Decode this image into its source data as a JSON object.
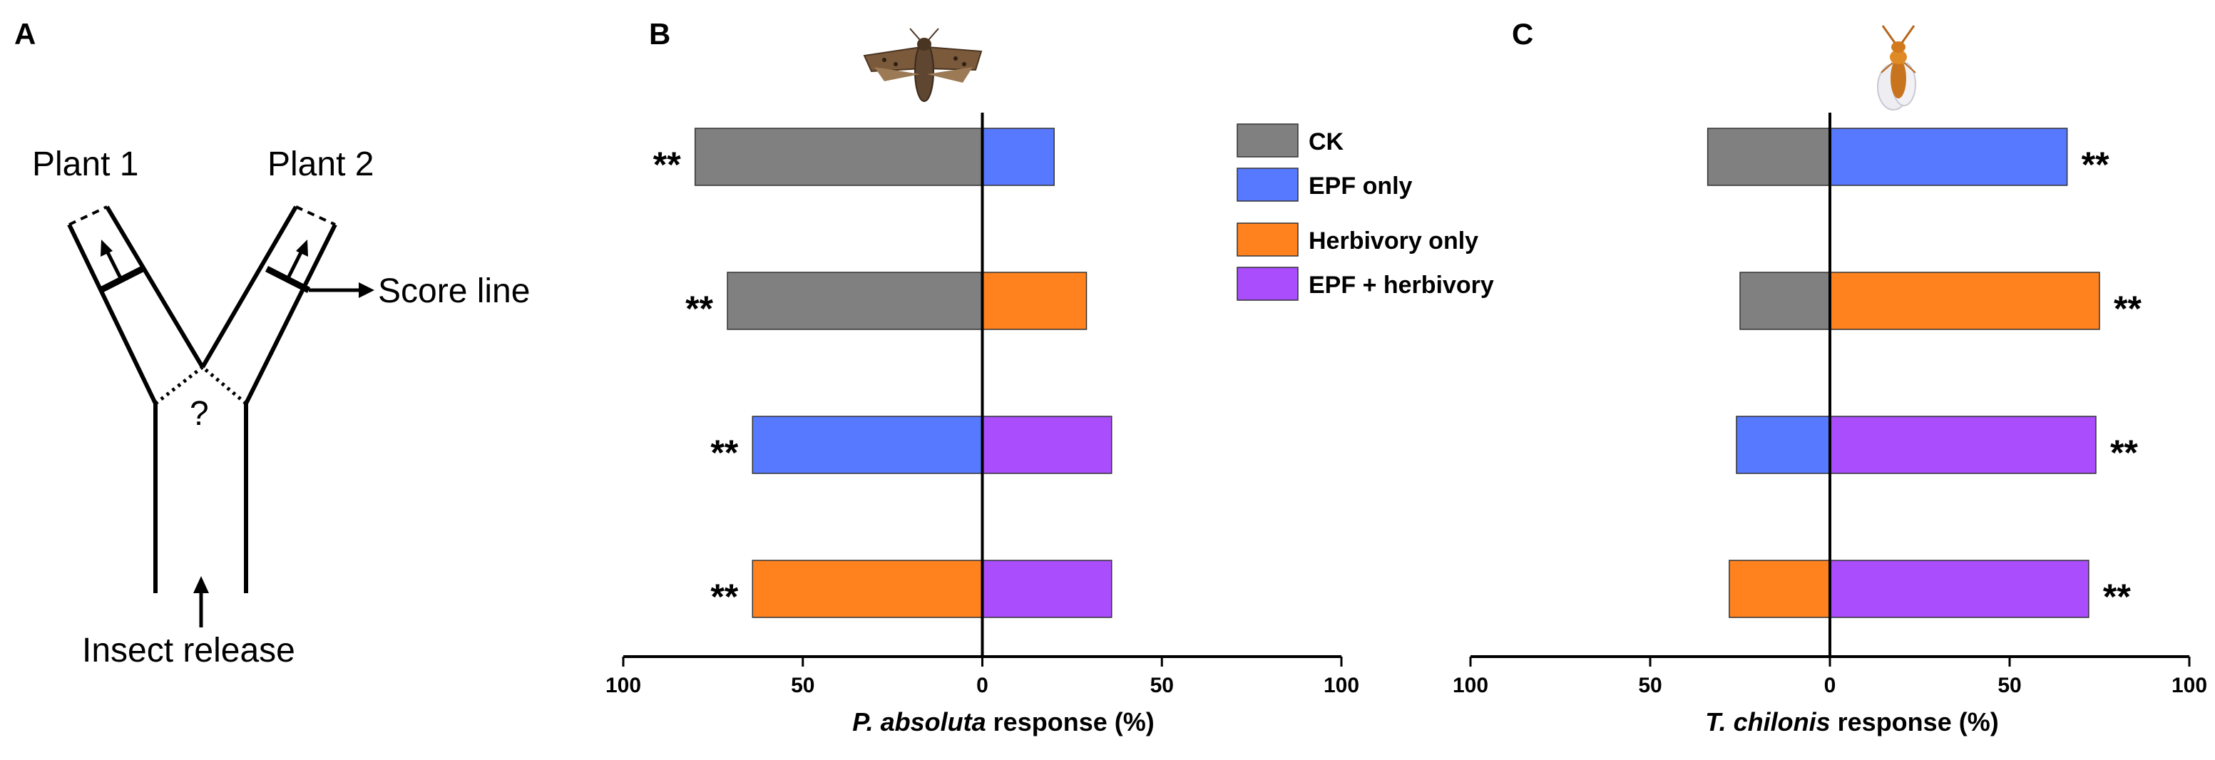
{
  "panels": {
    "a": {
      "letter": "A",
      "plant1": "Plant 1",
      "plant2": "Plant 2",
      "score_line": "Score line",
      "question": "?",
      "insect_release": "Insect release"
    },
    "b": {
      "letter": "B",
      "insect_icon": "moth-icon"
    },
    "c": {
      "letter": "C",
      "insect_icon": "wasp-icon"
    }
  },
  "legend": [
    {
      "key": "ck",
      "label": "CK",
      "color": "#808080"
    },
    {
      "key": "epf",
      "label": "EPF only",
      "color": "#5779ff"
    },
    {
      "key": "herb",
      "label": "Herbivory only",
      "color": "#ff821e"
    },
    {
      "key": "epfherb",
      "label": "EPF + herbivory",
      "color": "#a94dfd"
    }
  ],
  "chart_data": [
    {
      "type": "bar",
      "orientation": "horizontal-diverging",
      "panel": "B",
      "xlabel_italic": "P. absoluta",
      "xlabel_rest": " response (%)",
      "xlim": [
        -100,
        100
      ],
      "ticks": [
        {
          "value": -100,
          "label": "100"
        },
        {
          "value": -50,
          "label": "50"
        },
        {
          "value": 0,
          "label": "0"
        },
        {
          "value": 50,
          "label": "50"
        },
        {
          "value": 100,
          "label": "100"
        }
      ],
      "rows": [
        {
          "left": {
            "group": "ck",
            "value": 80
          },
          "right": {
            "group": "epf",
            "value": 20
          },
          "sig": "**",
          "sig_side": "left"
        },
        {
          "left": {
            "group": "ck",
            "value": 71
          },
          "right": {
            "group": "herb",
            "value": 29
          },
          "sig": "**",
          "sig_side": "left"
        },
        {
          "left": {
            "group": "epf",
            "value": 64
          },
          "right": {
            "group": "epfherb",
            "value": 36
          },
          "sig": "**",
          "sig_side": "left"
        },
        {
          "left": {
            "group": "herb",
            "value": 64
          },
          "right": {
            "group": "epfherb",
            "value": 36
          },
          "sig": "**",
          "sig_side": "left"
        }
      ]
    },
    {
      "type": "bar",
      "orientation": "horizontal-diverging",
      "panel": "C",
      "xlabel_italic": "T. chilonis",
      "xlabel_rest": " response (%)",
      "xlim": [
        -100,
        100
      ],
      "ticks": [
        {
          "value": -100,
          "label": "100"
        },
        {
          "value": -50,
          "label": "50"
        },
        {
          "value": 0,
          "label": "0"
        },
        {
          "value": 50,
          "label": "50"
        },
        {
          "value": 100,
          "label": "100"
        }
      ],
      "rows": [
        {
          "left": {
            "group": "ck",
            "value": 34
          },
          "right": {
            "group": "epf",
            "value": 66
          },
          "sig": "**",
          "sig_side": "right"
        },
        {
          "left": {
            "group": "ck",
            "value": 25
          },
          "right": {
            "group": "herb",
            "value": 75
          },
          "sig": "**",
          "sig_side": "right"
        },
        {
          "left": {
            "group": "epf",
            "value": 26
          },
          "right": {
            "group": "epfherb",
            "value": 74
          },
          "sig": "**",
          "sig_side": "right"
        },
        {
          "left": {
            "group": "herb",
            "value": 28
          },
          "right": {
            "group": "epfherb",
            "value": 72
          },
          "sig": "**",
          "sig_side": "right"
        }
      ]
    }
  ]
}
